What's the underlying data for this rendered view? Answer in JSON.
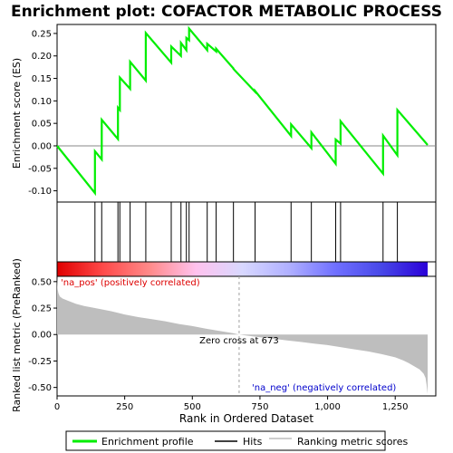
{
  "chart_data": {
    "type": "line",
    "title": "Enrichment plot: COFACTOR METABOLIC PROCESS",
    "xlabel": "Rank in Ordered Dataset",
    "ylabel_top": "Enrichment score (ES)",
    "ylabel_bottom": "Ranked list metric (PreRanked)",
    "xlim": [
      0,
      1400
    ],
    "x_ticks": [
      0,
      250,
      500,
      750,
      1000,
      1250
    ],
    "x_tick_labels": [
      "0",
      "250",
      "500",
      "750",
      "1,000",
      "1,250"
    ],
    "es_ylim": [
      -0.125,
      0.27
    ],
    "es_ticks": [
      0.25,
      0.2,
      0.15,
      0.1,
      0.05,
      0.0,
      -0.05,
      -0.1
    ],
    "es_tick_labels": [
      "0.25",
      "0.20",
      "0.15",
      "0.10",
      "0.05",
      "0.00",
      "-0.05",
      "-0.10"
    ],
    "metric_ylim": [
      -0.58,
      0.55
    ],
    "metric_ticks": [
      0.5,
      0.25,
      0.0,
      -0.25,
      -0.5
    ],
    "metric_tick_labels": [
      "0.50",
      "0.25",
      "0.00",
      "-0.25",
      "-0.50"
    ],
    "hits": [
      140,
      165,
      225,
      232,
      270,
      328,
      422,
      458,
      478,
      488,
      555,
      588,
      652,
      732,
      865,
      940,
      1030,
      1048,
      1205,
      1258
    ],
    "es_profile": {
      "x": [
        0,
        140,
        140,
        165,
        165,
        225,
        225,
        232,
        232,
        270,
        270,
        328,
        328,
        422,
        422,
        458,
        458,
        478,
        478,
        488,
        488,
        555,
        555,
        588,
        588,
        652,
        652,
        732,
        732,
        865,
        865,
        940,
        940,
        1030,
        1030,
        1048,
        1048,
        1205,
        1205,
        1258,
        1258,
        1370
      ],
      "y": [
        0.0,
        -0.105,
        -0.012,
        -0.03,
        0.058,
        0.015,
        0.085,
        0.08,
        0.152,
        0.127,
        0.187,
        0.145,
        0.251,
        0.185,
        0.221,
        0.2,
        0.229,
        0.213,
        0.24,
        0.235,
        0.261,
        0.213,
        0.227,
        0.21,
        0.216,
        0.172,
        0.171,
        0.12,
        0.122,
        0.022,
        0.048,
        -0.005,
        0.03,
        -0.04,
        0.014,
        0.005,
        0.055,
        -0.062,
        0.023,
        -0.021,
        0.08,
        0.002
      ]
    },
    "metric_profile": {
      "x": [
        0,
        2,
        5,
        10,
        20,
        40,
        70,
        100,
        140,
        200,
        250,
        300,
        350,
        400,
        450,
        500,
        550,
        600,
        650,
        673,
        700,
        750,
        800,
        850,
        900,
        950,
        1000,
        1050,
        1100,
        1150,
        1200,
        1250,
        1280,
        1300,
        1320,
        1340,
        1355,
        1362,
        1366,
        1370
      ],
      "y": [
        0.55,
        0.43,
        0.39,
        0.36,
        0.34,
        0.32,
        0.29,
        0.27,
        0.25,
        0.22,
        0.19,
        0.165,
        0.145,
        0.125,
        0.1,
        0.08,
        0.055,
        0.035,
        0.012,
        0.0,
        -0.01,
        -0.025,
        -0.04,
        -0.055,
        -0.07,
        -0.085,
        -0.1,
        -0.12,
        -0.14,
        -0.16,
        -0.185,
        -0.215,
        -0.245,
        -0.27,
        -0.3,
        -0.33,
        -0.37,
        -0.41,
        -0.47,
        -0.56
      ]
    },
    "zero_cross_rank": 673,
    "annotations": {
      "zero_cross": "Zero cross at 673",
      "na_pos": "'na_pos' (positively correlated)",
      "na_neg": "'na_neg' (negatively correlated)"
    },
    "legend": [
      "Enrichment profile",
      "Hits",
      "Ranking metric scores"
    ],
    "legend_position": "bottom",
    "colors": {
      "enrichment_line": "#00ee00",
      "hits": "#000000",
      "metric_fill": "#bebebe",
      "na_pos_text": "#dd0000",
      "na_neg_text": "#0000cc",
      "zero_line": "#a0a0a0",
      "heat_stops": [
        "#e00000",
        "#ff4a4a",
        "#ff8a8a",
        "#ffc2ee",
        "#d8d8ff",
        "#b0b0ff",
        "#7070ff",
        "#4848e8",
        "#2a00d8"
      ]
    },
    "grid": false
  }
}
